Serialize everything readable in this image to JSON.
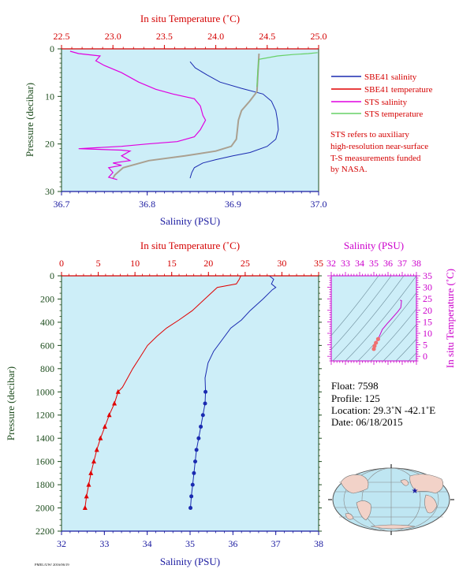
{
  "chart_data": [
    {
      "type": "line",
      "top_axis_label": "In situ Temperature (˚C)",
      "bottom_axis_label": "Salinity (PSU)",
      "left_axis_label": "Pressure (decibar)",
      "temp_ticks": [
        "22.5",
        "23.0",
        "23.5",
        "24.0",
        "24.5",
        "25.0"
      ],
      "sal_ticks": [
        "36.7",
        "36.8",
        "36.9",
        "37.0"
      ],
      "pres_ticks": [
        "0",
        "10",
        "20",
        "30"
      ],
      "temp_lim": [
        22.5,
        25.0
      ],
      "sal_lim": [
        36.7,
        37.0
      ],
      "pres_lim": [
        0,
        30
      ],
      "legend": [
        {
          "label": "SBE41 salinity",
          "color": "#1a2ab0"
        },
        {
          "label": "SBE41 temperature",
          "color": "#e00000"
        },
        {
          "label": "STS salinity",
          "color": "#e000e0"
        },
        {
          "label": "STS temperature",
          "color": "#66d066"
        }
      ],
      "note": [
        "STS refers to auxiliary",
        "high-resolution near-surface",
        "T-S measurements funded",
        "by NASA."
      ],
      "series": [
        {
          "name": "SBE41 salinity",
          "axis": "salinity",
          "points": [
            [
              36.85,
              2.7
            ],
            [
              36.856,
              4
            ],
            [
              36.87,
              5.5
            ],
            [
              36.885,
              7
            ],
            [
              36.91,
              8.3
            ],
            [
              36.935,
              9.5
            ],
            [
              36.945,
              11
            ],
            [
              36.95,
              13
            ],
            [
              36.952,
              15
            ],
            [
              36.953,
              17
            ],
            [
              36.95,
              19
            ],
            [
              36.94,
              20.5
            ],
            [
              36.92,
              21.8
            ],
            [
              36.9,
              22.5
            ],
            [
              36.88,
              23.3
            ],
            [
              36.865,
              24
            ],
            [
              36.855,
              25
            ],
            [
              36.852,
              26
            ],
            [
              36.85,
              27.2
            ]
          ]
        },
        {
          "name": "SBE41 temperature",
          "axis": "temperature",
          "points": [
            [
              24.42,
              1
            ],
            [
              24.41,
              5
            ],
            [
              24.4,
              9
            ],
            [
              24.33,
              11
            ],
            [
              24.25,
              13
            ],
            [
              24.22,
              15
            ],
            [
              24.21,
              17
            ],
            [
              24.2,
              19
            ],
            [
              24.15,
              20.5
            ],
            [
              24.0,
              21.5
            ],
            [
              23.7,
              22.5
            ],
            [
              23.35,
              23.5
            ],
            [
              23.1,
              25
            ],
            [
              23.02,
              26.5
            ],
            [
              23.0,
              27.2
            ]
          ]
        },
        {
          "name": "STS salinity",
          "axis": "salinity",
          "points": [
            [
              36.71,
              0.5
            ],
            [
              36.72,
              1
            ],
            [
              36.745,
              1.5
            ],
            [
              36.74,
              2.5
            ],
            [
              36.75,
              3.5
            ],
            [
              36.77,
              5
            ],
            [
              36.79,
              7
            ],
            [
              36.81,
              8.5
            ],
            [
              36.83,
              9.5
            ],
            [
              36.855,
              10.5
            ],
            [
              36.862,
              12
            ],
            [
              36.865,
              14
            ],
            [
              36.868,
              15
            ],
            [
              36.862,
              17
            ],
            [
              36.855,
              18.5
            ],
            [
              36.835,
              19.5
            ],
            [
              36.8,
              20
            ],
            [
              36.77,
              20.5
            ],
            [
              36.72,
              21
            ],
            [
              36.77,
              21.3
            ],
            [
              36.78,
              21.5
            ],
            [
              36.77,
              22.5
            ],
            [
              36.78,
              23.5
            ],
            [
              36.76,
              24
            ],
            [
              36.77,
              24.5
            ],
            [
              36.755,
              25
            ],
            [
              36.76,
              26
            ],
            [
              36.755,
              27
            ],
            [
              36.765,
              27.5
            ]
          ]
        },
        {
          "name": "STS temperature",
          "axis": "temperature",
          "points": [
            [
              24.99,
              0.8
            ],
            [
              24.9,
              1
            ],
            [
              24.75,
              1.2
            ],
            [
              24.6,
              1.5
            ],
            [
              24.42,
              2.2
            ],
            [
              24.41,
              4
            ],
            [
              24.4,
              8
            ]
          ]
        }
      ]
    },
    {
      "type": "line",
      "top_axis_label": "In situ Temperature (˚C)",
      "bottom_axis_label": "Salinity (PSU)",
      "left_axis_label": "Pressure (decibar)",
      "temp_ticks": [
        "0",
        "5",
        "10",
        "15",
        "20",
        "25",
        "30",
        "35"
      ],
      "sal_ticks": [
        "32",
        "33",
        "34",
        "35",
        "36",
        "37",
        "38"
      ],
      "pres_ticks": [
        "0",
        "200",
        "400",
        "600",
        "800",
        "1000",
        "1200",
        "1400",
        "1600",
        "1800",
        "2000",
        "2200"
      ],
      "temp_lim": [
        0,
        35
      ],
      "sal_lim": [
        32,
        38
      ],
      "pres_lim": [
        0,
        2200
      ],
      "series": [
        {
          "name": "Temperature",
          "axis": "temperature",
          "points": [
            [
              24.4,
              0
            ],
            [
              24.2,
              30
            ],
            [
              23.8,
              70
            ],
            [
              21.2,
              100
            ],
            [
              19.5,
              200
            ],
            [
              17.8,
              300
            ],
            [
              16.0,
              380
            ],
            [
              14.3,
              450
            ],
            [
              13.0,
              520
            ],
            [
              11.7,
              600
            ],
            [
              10.7,
              700
            ],
            [
              9.7,
              800
            ],
            [
              9.0,
              880
            ],
            [
              8.3,
              960
            ],
            [
              7.7,
              1000
            ],
            [
              7.2,
              1100
            ],
            [
              6.5,
              1200
            ],
            [
              5.9,
              1300
            ],
            [
              5.3,
              1400
            ],
            [
              4.8,
              1500
            ],
            [
              4.4,
              1600
            ],
            [
              4.0,
              1700
            ],
            [
              3.7,
              1800
            ],
            [
              3.4,
              1900
            ],
            [
              3.2,
              2000
            ]
          ]
        },
        {
          "name": "Salinity",
          "axis": "salinity",
          "points": [
            [
              36.85,
              0
            ],
            [
              36.95,
              30
            ],
            [
              36.9,
              70
            ],
            [
              37.0,
              100
            ],
            [
              36.92,
              120
            ],
            [
              36.7,
              200
            ],
            [
              36.4,
              300
            ],
            [
              36.2,
              380
            ],
            [
              35.95,
              450
            ],
            [
              35.75,
              550
            ],
            [
              35.55,
              650
            ],
            [
              35.42,
              750
            ],
            [
              35.35,
              880
            ],
            [
              35.36,
              1000
            ],
            [
              35.35,
              1100
            ],
            [
              35.3,
              1200
            ],
            [
              35.25,
              1300
            ],
            [
              35.2,
              1400
            ],
            [
              35.15,
              1500
            ],
            [
              35.12,
              1600
            ],
            [
              35.09,
              1700
            ],
            [
              35.06,
              1800
            ],
            [
              35.03,
              1900
            ],
            [
              35.01,
              2000
            ]
          ]
        }
      ]
    },
    {
      "type": "scatter",
      "top_axis_label": "Salinity (PSU)",
      "right_axis_label": "In situ Temperature (˚C)",
      "sal_ticks": [
        "32",
        "33",
        "34",
        "35",
        "36",
        "37",
        "38"
      ],
      "temp_ticks": [
        "0",
        "5",
        "10",
        "15",
        "20",
        "25",
        "30",
        "35"
      ],
      "sal_lim": [
        32,
        38
      ],
      "temp_lim": [
        -2,
        35
      ],
      "points": [
        [
          35.0,
          3.2
        ],
        [
          35.05,
          4.5
        ],
        [
          35.15,
          5.9
        ],
        [
          35.3,
          7.5
        ],
        [
          35.6,
          11.7
        ],
        [
          35.95,
          14.3
        ],
        [
          36.2,
          16.0
        ],
        [
          36.7,
          19.5
        ],
        [
          36.9,
          21.2
        ],
        [
          36.95,
          24.2
        ],
        [
          36.85,
          24.4
        ]
      ]
    }
  ],
  "info": {
    "float": "Float:  7598",
    "profile": "Profile:  125",
    "location": "Location:  29.3˚N  -42.1˚E",
    "date": "Date:  06/18/2015"
  },
  "footer": "PMEL/UW/ 2016/06/19",
  "colors": {
    "panel_bg": "#cdeef8",
    "red": "#e00000",
    "blue": "#1a2ab0",
    "magenta": "#e000e0",
    "sts_temp": "#66d066",
    "merged": "#aaa090",
    "land": "#f2d2c8",
    "ocean": "#bfe6f2"
  }
}
